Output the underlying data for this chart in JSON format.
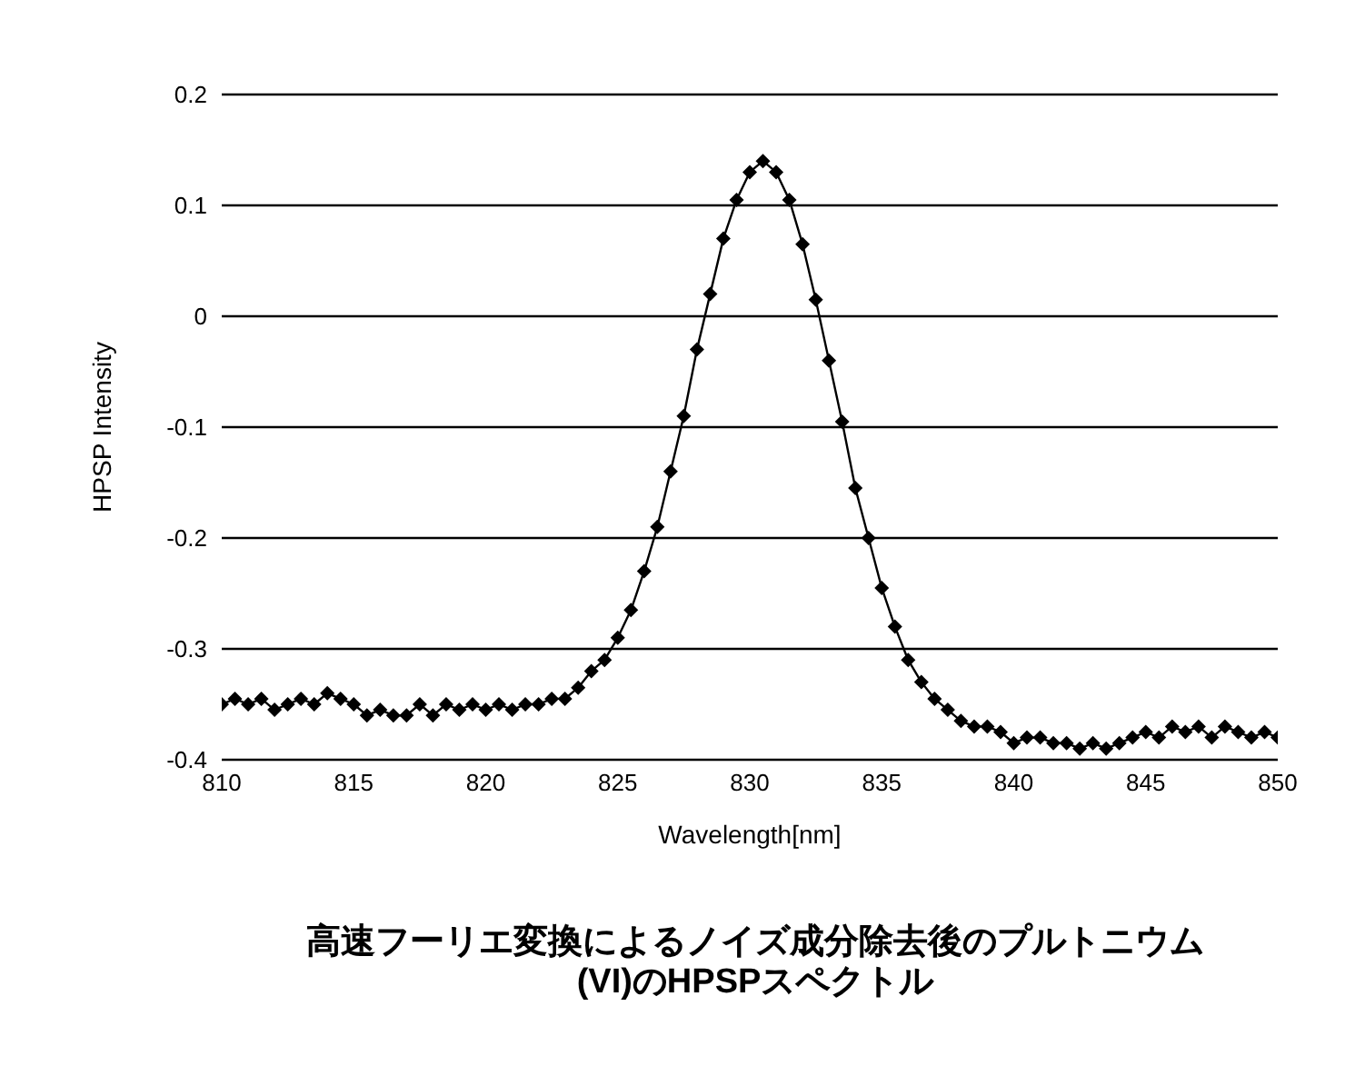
{
  "chart_data": {
    "type": "line",
    "title": "高速フーリエ変換によるノイズ成分除去後のプルトニウム(VI)のHPSPスペクトル",
    "xlabel": "Wavelength[nm]",
    "ylabel": "HPSP Intensity",
    "x": [
      810,
      810.5,
      811,
      811.5,
      812,
      812.5,
      813,
      813.5,
      814,
      814.5,
      815,
      815.5,
      816,
      816.5,
      817,
      817.5,
      818,
      818.5,
      819,
      819.5,
      820,
      820.5,
      821,
      821.5,
      822,
      822.5,
      823,
      823.5,
      824,
      824.5,
      825,
      825.5,
      826,
      826.5,
      827,
      827.5,
      828,
      828.5,
      829,
      829.5,
      830,
      830.5,
      831,
      831.5,
      832,
      832.5,
      833,
      833.5,
      834,
      834.5,
      835,
      835.5,
      836,
      836.5,
      837,
      837.5,
      838,
      838.5,
      839,
      839.5,
      840,
      840.5,
      841,
      841.5,
      842,
      842.5,
      843,
      843.5,
      844,
      844.5,
      845,
      845.5,
      846,
      846.5,
      847,
      847.5,
      848,
      848.5,
      849,
      849.5,
      850
    ],
    "series": [
      {
        "color": "#000000",
        "values": [
          -0.35,
          -0.345,
          -0.35,
          -0.345,
          -0.355,
          -0.35,
          -0.345,
          -0.35,
          -0.34,
          -0.345,
          -0.35,
          -0.36,
          -0.355,
          -0.36,
          -0.36,
          -0.35,
          -0.36,
          -0.35,
          -0.355,
          -0.35,
          -0.355,
          -0.35,
          -0.355,
          -0.35,
          -0.35,
          -0.345,
          -0.345,
          -0.335,
          -0.32,
          -0.31,
          -0.29,
          -0.265,
          -0.23,
          -0.19,
          -0.14,
          -0.09,
          -0.03,
          0.02,
          0.07,
          0.105,
          0.13,
          0.14,
          0.13,
          0.105,
          0.065,
          0.015,
          -0.04,
          -0.095,
          -0.155,
          -0.2,
          -0.245,
          -0.28,
          -0.31,
          -0.33,
          -0.345,
          -0.355,
          -0.365,
          -0.37,
          -0.37,
          -0.375,
          -0.385,
          -0.38,
          -0.38,
          -0.385,
          -0.385,
          -0.39,
          -0.385,
          -0.39,
          -0.385,
          -0.38,
          -0.375,
          -0.38,
          -0.37,
          -0.375,
          -0.37,
          -0.38,
          -0.37,
          -0.375,
          -0.38,
          -0.375,
          -0.38
        ]
      }
    ],
    "xlim": [
      810,
      850
    ],
    "xticks": [
      810,
      815,
      820,
      825,
      830,
      835,
      840,
      845,
      850
    ],
    "ylim": [
      -0.4,
      0.2
    ],
    "yticks": [
      -0.4,
      -0.3,
      -0.2,
      -0.1,
      0,
      0.1,
      0.2
    ],
    "grid": "y",
    "marker": "diamond",
    "line_style": "solid"
  }
}
